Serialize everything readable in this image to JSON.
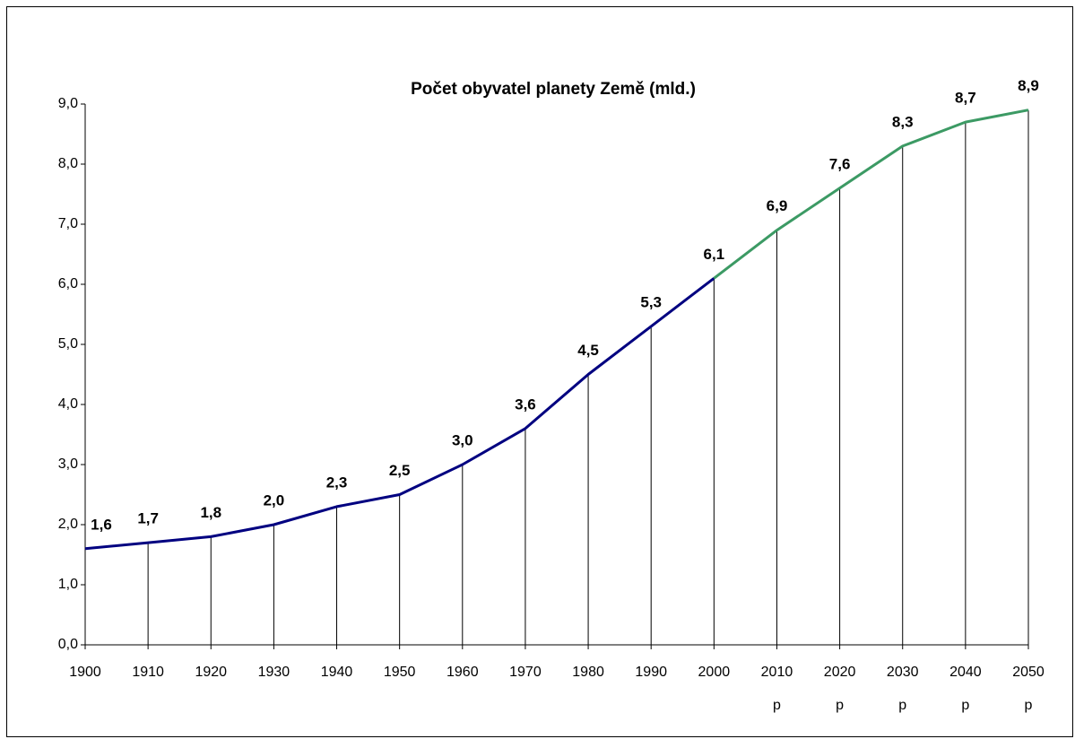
{
  "chart_data": {
    "type": "line",
    "title": "Počet obyvatel planety Země (mld.)",
    "x": [
      1900,
      1910,
      1920,
      1930,
      1940,
      1950,
      1960,
      1970,
      1980,
      1990,
      2000,
      2010,
      2020,
      2030,
      2040,
      2050
    ],
    "series": [
      {
        "color": "#000080",
        "values": [
          1.6,
          1.7,
          1.8,
          2.0,
          2.3,
          2.5,
          3.0,
          3.6,
          4.5,
          5.3,
          6.1,
          null,
          null,
          null,
          null,
          null
        ],
        "value_labels": [
          "1,6",
          "1,7",
          "1,8",
          "2,0",
          "2,3",
          "2,5",
          "3,0",
          "3,6",
          "4,5",
          "5,3",
          "6,1",
          null,
          null,
          null,
          null,
          null
        ]
      },
      {
        "color": "#3c9a64",
        "values": [
          null,
          null,
          null,
          null,
          null,
          null,
          null,
          null,
          null,
          null,
          6.1,
          6.9,
          7.6,
          8.3,
          8.7,
          8.9
        ],
        "value_labels": [
          null,
          null,
          null,
          null,
          null,
          null,
          null,
          null,
          null,
          null,
          null,
          "6,9",
          "7,6",
          "8,3",
          "8,7",
          "8,9"
        ]
      }
    ],
    "xlim": [
      1900,
      2050
    ],
    "xticks": [
      1900,
      1910,
      1920,
      1930,
      1940,
      1950,
      1960,
      1970,
      1980,
      1990,
      2000,
      {
        "value": 2010,
        "label": "2010\np"
      },
      {
        "value": 2020,
        "label": "2020\np"
      },
      {
        "value": 2030,
        "label": "2030\np"
      },
      {
        "value": 2040,
        "label": "2040\np"
      },
      {
        "value": 2050,
        "label": "2050\np"
      }
    ],
    "ylim": [
      0,
      9
    ],
    "yticks": [
      {
        "value": 0,
        "label": "0,0"
      },
      {
        "value": 1,
        "label": "1,0"
      },
      {
        "value": 2,
        "label": "2,0"
      },
      {
        "value": 3,
        "label": "3,0"
      },
      {
        "value": 4,
        "label": "4,0"
      },
      {
        "value": 5,
        "label": "5,0"
      },
      {
        "value": 6,
        "label": "6,0"
      },
      {
        "value": 7,
        "label": "7,0"
      },
      {
        "value": 8,
        "label": "8,0"
      },
      {
        "value": 9,
        "label": "9,0"
      }
    ],
    "drop_lines": true
  }
}
